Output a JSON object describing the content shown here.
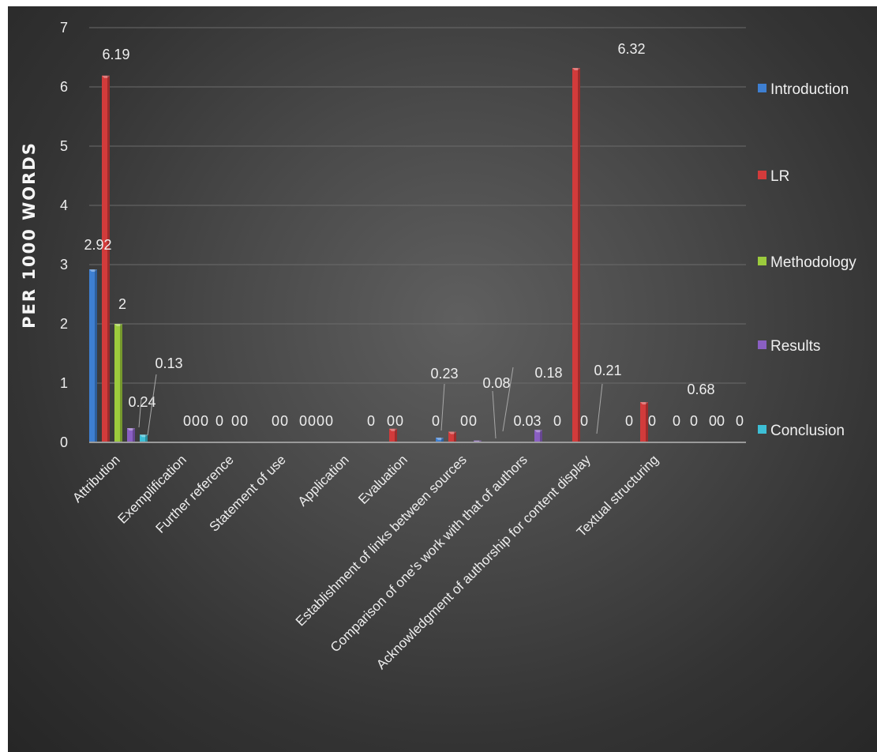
{
  "chart_data": {
    "type": "bar",
    "ylabel": "PER 1000 WORDS",
    "ylim": [
      0,
      7
    ],
    "yticks": [
      "0",
      "1",
      "2",
      "3",
      "4",
      "5",
      "6",
      "7"
    ],
    "grid": true,
    "legend_position": "right",
    "categories": [
      "Attribution",
      "Exemplification",
      "Further reference",
      "Statement of use",
      "Application",
      "Evaluation",
      "Establishment of links between sources",
      "Comparison of one's work with that of authors",
      "Acknowledgment of authorship for content display",
      "Textual structuring"
    ],
    "series": [
      {
        "name": "Introduction",
        "color": "#3e7fd1",
        "values": [
          2.92,
          0,
          0,
          0,
          0,
          0,
          0.08,
          0,
          0,
          0
        ]
      },
      {
        "name": "LR",
        "color": "#d23b3b",
        "values": [
          6.19,
          0,
          0,
          0,
          0,
          0.23,
          0.18,
          0,
          6.32,
          0.68
        ]
      },
      {
        "name": "Methodology",
        "color": "#9ccb3d",
        "values": [
          2,
          0,
          0,
          0,
          0,
          0,
          0,
          0,
          0,
          0
        ]
      },
      {
        "name": "Results",
        "color": "#8a5fc3",
        "values": [
          0.24,
          0,
          0,
          0,
          0,
          0,
          0.03,
          0.21,
          0,
          0
        ]
      },
      {
        "name": "Conclusion",
        "color": "#3dbfd6",
        "values": [
          0.13,
          0,
          0,
          0,
          0,
          0,
          0,
          0,
          0,
          0
        ]
      }
    ],
    "data_labels": [
      {
        "text": "6.19"
      },
      {
        "text": "2.92"
      },
      {
        "text": "2"
      },
      {
        "text": "0.24"
      },
      {
        "text": "0.13"
      },
      {
        "text": "0"
      },
      {
        "text": "0"
      },
      {
        "text": "0"
      },
      {
        "text": "0"
      },
      {
        "text": "0"
      },
      {
        "text": "0"
      },
      {
        "text": "0"
      },
      {
        "text": "0"
      },
      {
        "text": "0"
      },
      {
        "text": "0"
      },
      {
        "text": "0"
      },
      {
        "text": "0"
      },
      {
        "text": "0"
      },
      {
        "text": "0"
      },
      {
        "text": "0"
      },
      {
        "text": "0"
      },
      {
        "text": "0.23"
      },
      {
        "text": "0"
      },
      {
        "text": "0"
      },
      {
        "text": "0.08"
      },
      {
        "text": "0.18"
      },
      {
        "text": "0.03"
      },
      {
        "text": "0"
      },
      {
        "text": "0"
      },
      {
        "text": "0.21"
      },
      {
        "text": "0"
      },
      {
        "text": "0"
      },
      {
        "text": "6.32"
      },
      {
        "text": "0"
      },
      {
        "text": "0"
      },
      {
        "text": "0"
      },
      {
        "text": "0.68"
      },
      {
        "text": "0"
      },
      {
        "text": "0"
      }
    ]
  }
}
